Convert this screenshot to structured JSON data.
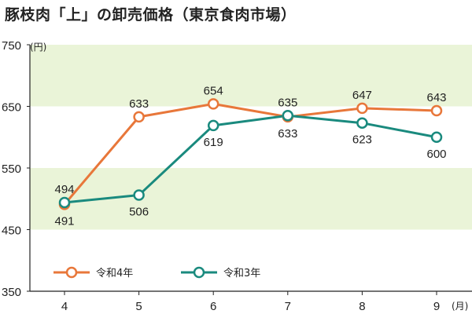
{
  "title": "豚枝肉「上」の卸売価格（東京食肉市場）",
  "chart_data": {
    "type": "line",
    "title": "豚枝肉「上」の卸売価格（東京食肉市場）",
    "x": [
      4,
      5,
      6,
      7,
      8,
      9
    ],
    "x_tick_labels": [
      "4",
      "5",
      "6",
      "7",
      "8",
      "9"
    ],
    "x_unit": "(月)",
    "y_unit": "(円)",
    "ylim": [
      350,
      750
    ],
    "y_ticks": [
      350,
      450,
      550,
      650,
      750
    ],
    "y_tick_labels": [
      "350",
      "450",
      "550",
      "650",
      "750"
    ],
    "grid": "horizontal bands",
    "legend_position": "bottom-left",
    "series": [
      {
        "name": "令和4年",
        "color": "#e8773a",
        "values": [
          491,
          633,
          654,
          633,
          647,
          643
        ],
        "value_labels": [
          "491",
          "633",
          "654",
          "633",
          "647",
          "643"
        ]
      },
      {
        "name": "令和3年",
        "color": "#1a8a7e",
        "values": [
          494,
          506,
          619,
          635,
          623,
          600
        ],
        "value_labels": [
          "494",
          "506",
          "619",
          "635",
          "623",
          "600"
        ]
      }
    ],
    "band_color": "#eaf4d8"
  }
}
